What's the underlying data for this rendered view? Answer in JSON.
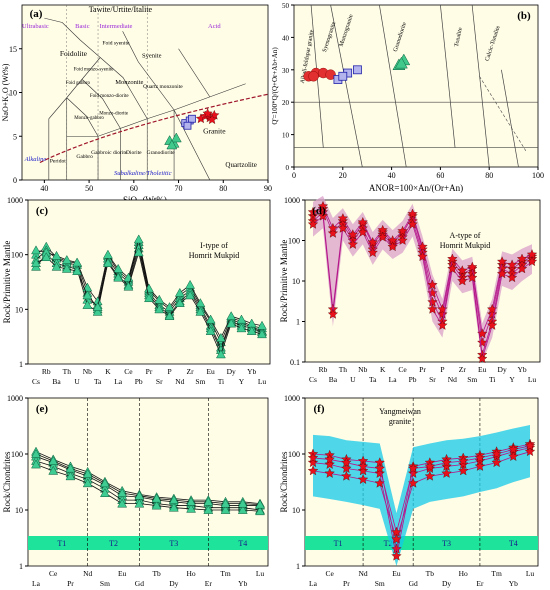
{
  "chart_data": [
    {
      "panel": "(a)",
      "type": "scatter",
      "xlabel": "SiO₂ (Wt%)",
      "ylabel": "NaO+K₂O (Wt%)",
      "xlim": [
        35,
        90
      ],
      "ylim": [
        0,
        20
      ],
      "xticks": [
        40,
        50,
        60,
        70,
        80,
        90
      ],
      "yticks": [
        0,
        5,
        10,
        15
      ],
      "field_labels": [
        "Tawite/Urtite/Italite",
        "Ultrabasic",
        "Basic",
        "Intermediate",
        "Acid",
        "Foidolite",
        "Foid syenite",
        "Syenite",
        "Monzonite",
        "Quartz monzonite",
        "Granite",
        "Quartzolite",
        "Peridot",
        "Gabbro",
        "Gabbroic diorite",
        "Diorite",
        "Granodiorite",
        "Foid monzo-syenite",
        "Foid monzo-diorite",
        "Foid gabbro",
        "Monzo-gabbro",
        "Monzo-diorite"
      ],
      "series_labels": [
        "Alkaline",
        "Subalkaline/Tholeiitic"
      ],
      "points": {
        "blue_squares": [
          [
            71.5,
            6.5
          ],
          [
            72.5,
            6.8
          ],
          [
            73,
            7.0
          ],
          [
            72,
            6.2
          ]
        ],
        "green_triangles": [
          [
            68,
            4.5
          ],
          [
            69,
            4.2
          ],
          [
            69.5,
            4.8
          ],
          [
            68.5,
            4.0
          ]
        ],
        "red_stars": [
          [
            75,
            7.0
          ],
          [
            76,
            7.3
          ],
          [
            77,
            7.1
          ],
          [
            78,
            7.4
          ],
          [
            77.5,
            6.9
          ],
          [
            76.5,
            7.6
          ]
        ]
      }
    },
    {
      "panel": "(b)",
      "type": "scatter",
      "xlabel": "ANOR=100×An/(Or+An)",
      "ylabel": "Q'=100*Q/(Q+Or+Ab+An)",
      "xlim": [
        0,
        100
      ],
      "ylim": [
        0,
        50
      ],
      "xticks": [
        0,
        20,
        40,
        60,
        80,
        100
      ],
      "yticks": [
        0,
        10,
        20,
        30,
        40,
        50
      ],
      "field_labels": [
        "Alkali-feldspar granite",
        "Syenogranite",
        "Monzogranite",
        "Granodiorite",
        "Tonalite",
        "Calcic-Tonalite"
      ],
      "points": {
        "blue_squares": [
          [
            18,
            27
          ],
          [
            22,
            29
          ],
          [
            26,
            30
          ],
          [
            20,
            28
          ]
        ],
        "green_triangles": [
          [
            43,
            31.5
          ],
          [
            45,
            33
          ],
          [
            44,
            32
          ]
        ],
        "red_circles": [
          [
            6,
            28
          ],
          [
            9,
            29
          ],
          [
            12,
            29
          ],
          [
            15,
            28.5
          ],
          [
            8,
            28
          ]
        ]
      }
    },
    {
      "panel": "(c)",
      "type": "line",
      "ylabel": "Rock/Primitive Mantle",
      "elements_top": [
        "Rb",
        "Th",
        "Nb",
        "K",
        "Ce",
        "Pr",
        "P",
        "Zr",
        "Eu",
        "Dy",
        "Yb"
      ],
      "elements_bottom": [
        "Cs",
        "Ba",
        "U",
        "Ta",
        "La",
        "Pb",
        "Sr",
        "Nd",
        "Sm",
        "Ti",
        "Y",
        "Lu"
      ],
      "elements": [
        "Cs",
        "Rb",
        "Ba",
        "Th",
        "U",
        "Nb",
        "Ta",
        "K",
        "La",
        "Ce",
        "Pb",
        "Pr",
        "Sr",
        "P",
        "Nd",
        "Zr",
        "Sm",
        "Eu",
        "Ti",
        "Dy",
        "Y",
        "Yb",
        "Lu"
      ],
      "ylim": [
        1,
        1000
      ],
      "yscale": "log",
      "annotation": "I-type of Homrit Mukpid",
      "series": [
        {
          "values": [
            100,
            140,
            90,
            75,
            70,
            20,
            10,
            95,
            50,
            35,
            170,
            22,
            14,
            10,
            18,
            25,
            12,
            6,
            2.5,
            7,
            6,
            5,
            4.5
          ]
        },
        {
          "values": [
            80,
            120,
            85,
            70,
            65,
            15,
            12,
            85,
            45,
            32,
            150,
            20,
            12,
            9,
            16,
            22,
            11,
            5,
            2,
            6.5,
            5.5,
            4.8,
            4
          ]
        },
        {
          "values": [
            60,
            100,
            70,
            60,
            55,
            12,
            9,
            75,
            40,
            28,
            130,
            18,
            11,
            8,
            14,
            20,
            10,
            4.5,
            1.8,
            6,
            5,
            4.5,
            3.8
          ]
        },
        {
          "values": [
            120,
            110,
            95,
            80,
            72,
            25,
            14,
            100,
            55,
            38,
            190,
            24,
            15,
            11,
            20,
            28,
            13,
            6.5,
            3,
            7.5,
            6.5,
            5.5,
            5
          ]
        },
        {
          "values": [
            70,
            90,
            60,
            55,
            50,
            18,
            11,
            70,
            38,
            26,
            110,
            16,
            10,
            7.5,
            13,
            18,
            9,
            4,
            1.5,
            5.5,
            4.5,
            4,
            3.5
          ]
        }
      ]
    },
    {
      "panel": "(d)",
      "type": "line",
      "ylabel": "Rock/Primitive Mantle",
      "elements_top": [
        "Rb",
        "Th",
        "Nb",
        "K",
        "Ce",
        "Pr",
        "P",
        "Zr",
        "Eu",
        "Dy",
        "Yb"
      ],
      "elements_bottom": [
        "Cs",
        "Ba",
        "U",
        "Ta",
        "La",
        "Pb",
        "Sr",
        "Nd",
        "Sm",
        "Ti",
        "Y",
        "Lu"
      ],
      "elements": [
        "Cs",
        "Rb",
        "Ba",
        "Th",
        "U",
        "Nb",
        "Ta",
        "K",
        "La",
        "Ce",
        "Pb",
        "Pr",
        "Sr",
        "P",
        "Nd",
        "Zr",
        "Sm",
        "Eu",
        "Ti",
        "Dy",
        "Y",
        "Yb",
        "Lu"
      ],
      "ylim": [
        0.1,
        1000
      ],
      "yscale": "log",
      "annotation": "A-type of Homrit Mukpid",
      "series": [
        {
          "values": [
            400,
            600,
            150,
            300,
            120,
            250,
            80,
            160,
            90,
            150,
            400,
            60,
            5,
            1.5,
            30,
            15,
            20,
            0.3,
            1.5,
            25,
            20,
            30,
            40
          ]
        },
        {
          "values": [
            300,
            500,
            2,
            250,
            100,
            200,
            60,
            140,
            80,
            120,
            300,
            50,
            3,
            1,
            25,
            12,
            15,
            0.15,
            1,
            20,
            15,
            25,
            35
          ]
        },
        {
          "values": [
            500,
            700,
            200,
            350,
            140,
            280,
            90,
            180,
            100,
            170,
            450,
            70,
            8,
            2,
            35,
            18,
            22,
            0.5,
            2,
            30,
            25,
            35,
            45
          ]
        },
        {
          "values": [
            250,
            400,
            1.5,
            200,
            80,
            160,
            50,
            120,
            70,
            100,
            250,
            40,
            2,
            0.8,
            20,
            10,
            12,
            0.12,
            0.8,
            15,
            12,
            20,
            30
          ]
        }
      ]
    },
    {
      "panel": "(e)",
      "type": "line",
      "ylabel": "Rock/Chondrites",
      "elements": [
        "La",
        "Ce",
        "Pr",
        "Nd",
        "Sm",
        "Eu",
        "Gd",
        "Tb",
        "Dy",
        "Ho",
        "Er",
        "Tm",
        "Yb",
        "Lu"
      ],
      "ylim": [
        1,
        1000
      ],
      "yscale": "log",
      "tetrads": [
        "T1",
        "T2",
        "T3",
        "T4"
      ],
      "series": [
        {
          "values": [
            110,
            80,
            60,
            48,
            32,
            22,
            19,
            17,
            16,
            15,
            15,
            14,
            14,
            13
          ]
        },
        {
          "values": [
            90,
            70,
            52,
            40,
            28,
            18,
            17,
            15,
            14,
            13,
            13,
            12,
            12,
            12
          ]
        },
        {
          "values": [
            75,
            60,
            45,
            35,
            24,
            15,
            15,
            13,
            12,
            12,
            11,
            11,
            11,
            10
          ]
        },
        {
          "values": [
            65,
            50,
            40,
            30,
            20,
            13,
            13,
            12,
            11,
            10.5,
            10,
            10,
            10,
            9.5
          ]
        },
        {
          "values": [
            100,
            75,
            55,
            44,
            30,
            20,
            18,
            16,
            15,
            14,
            14,
            13,
            13,
            12.5
          ]
        }
      ]
    },
    {
      "panel": "(f)",
      "type": "line",
      "ylabel": "Rock/Chondrites",
      "elements": [
        "La",
        "Ce",
        "Pr",
        "Nd",
        "Sm",
        "Eu",
        "Gd",
        "Tb",
        "Dy",
        "Ho",
        "Er",
        "Tm",
        "Yb",
        "Lu"
      ],
      "ylim": [
        1,
        1000
      ],
      "yscale": "log",
      "tetrads": [
        "T1",
        "T2",
        "T3",
        "T4"
      ],
      "annotation": "Yangmeiwan granite",
      "series": [
        {
          "values": [
            100,
            95,
            80,
            75,
            70,
            2,
            60,
            70,
            80,
            85,
            95,
            110,
            130,
            150
          ]
        },
        {
          "values": [
            70,
            65,
            55,
            50,
            45,
            1.5,
            45,
            55,
            60,
            65,
            75,
            90,
            110,
            130
          ]
        },
        {
          "values": [
            50,
            45,
            40,
            35,
            30,
            3,
            30,
            40,
            45,
            50,
            60,
            70,
            90,
            110
          ]
        },
        {
          "values": [
            85,
            80,
            70,
            60,
            55,
            4,
            55,
            60,
            70,
            75,
            85,
            100,
            120,
            140
          ]
        }
      ]
    }
  ]
}
